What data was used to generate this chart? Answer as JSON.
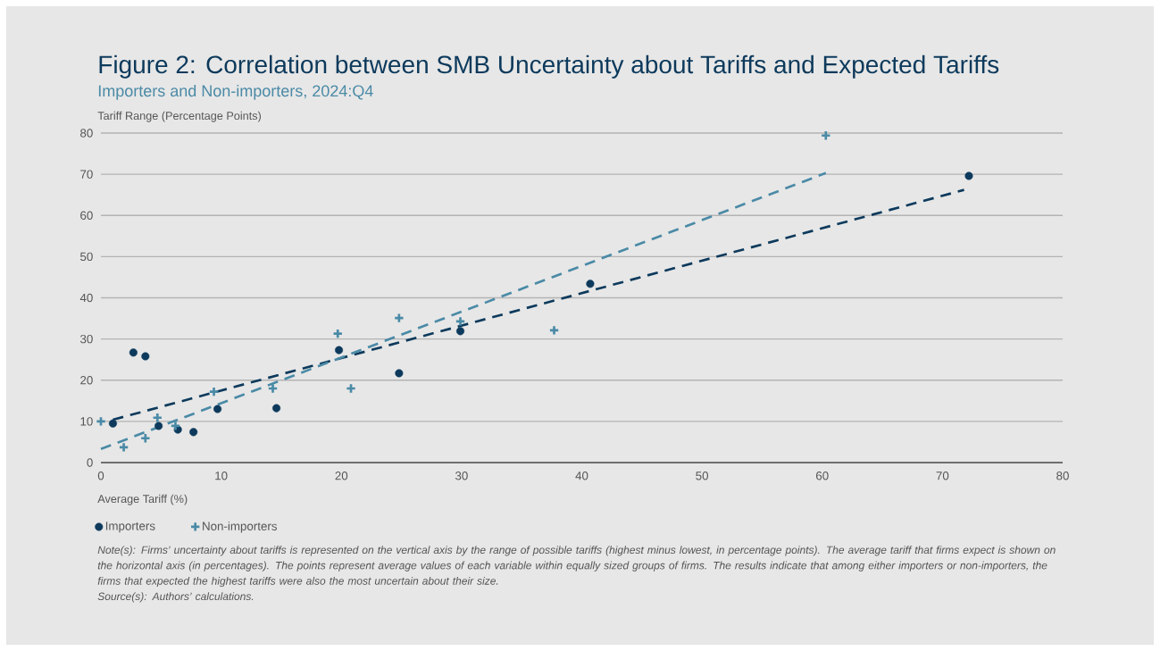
{
  "chart_data": {
    "type": "scatter",
    "title": "Figure 2: Correlation between SMB Uncertainty about Tariffs and Expected Tariffs",
    "subtitle": "Importers and Non-importers, 2024:Q4",
    "xlabel": "Average Tariff (%)",
    "ylabel": "Tariff Range (Percentage Points)",
    "annotations": [
      "Note(s): Firms’ uncertainty about tariffs is represented on the vertical axis by the range of possible tariffs (highest minus lowest, in percentage points). The average tariff that firms expect is shown on the horizontal axis (in percentages). The points represent average values of each variable within equally sized groups of firms. The results indicate that among either importers or non-importers, the firms that expected the highest tariffs were also the most uncertain about their size.",
      "Source(s): Authors’ calculations."
    ],
    "series": [
      {
        "name": "Importers",
        "color": "#0d3a5c",
        "marker": "circle",
        "x": [
          1.0,
          2.7,
          3.7,
          4.8,
          6.4,
          7.7,
          9.7,
          14.6,
          19.8,
          24.8,
          29.9,
          40.7,
          72.2
        ],
        "values": [
          9.5,
          26.7,
          25.8,
          8.9,
          8.0,
          7.4,
          13.0,
          13.2,
          27.3,
          21.7,
          31.9,
          43.4,
          69.6
        ]
      },
      {
        "name": "Non-importers",
        "color": "#4a8aa6",
        "marker": "cross",
        "x": [
          0,
          1.9,
          3.7,
          4.7,
          6.2,
          9.4,
          14.3,
          19.7,
          20.8,
          24.8,
          29.9,
          37.7,
          60.3
        ],
        "values": [
          10.0,
          3.7,
          5.9,
          10.9,
          8.9,
          17.2,
          18.0,
          31.3,
          18.0,
          35.1,
          34.3,
          32.1,
          79.4
        ]
      },
      {
        "type": "line",
        "color": "#0d3a5c",
        "line_style": "dashed",
        "marker": "none",
        "x": [
          1.0,
          71.8
        ],
        "values": [
          10.4,
          66.2
        ]
      },
      {
        "type": "line",
        "color": "#4a8aa6",
        "line_style": "dashed",
        "marker": "none",
        "x": [
          0,
          60.3
        ],
        "values": [
          3.3,
          70.3
        ]
      }
    ],
    "xlim": [
      0,
      80
    ],
    "ylim": [
      0,
      80
    ],
    "xticks": [
      0,
      10,
      20,
      30,
      40,
      50,
      60,
      70,
      80
    ],
    "yticks": [
      0,
      10,
      20,
      30,
      40,
      50,
      60,
      70,
      80
    ],
    "grid": "y",
    "legend": "bottom left"
  }
}
